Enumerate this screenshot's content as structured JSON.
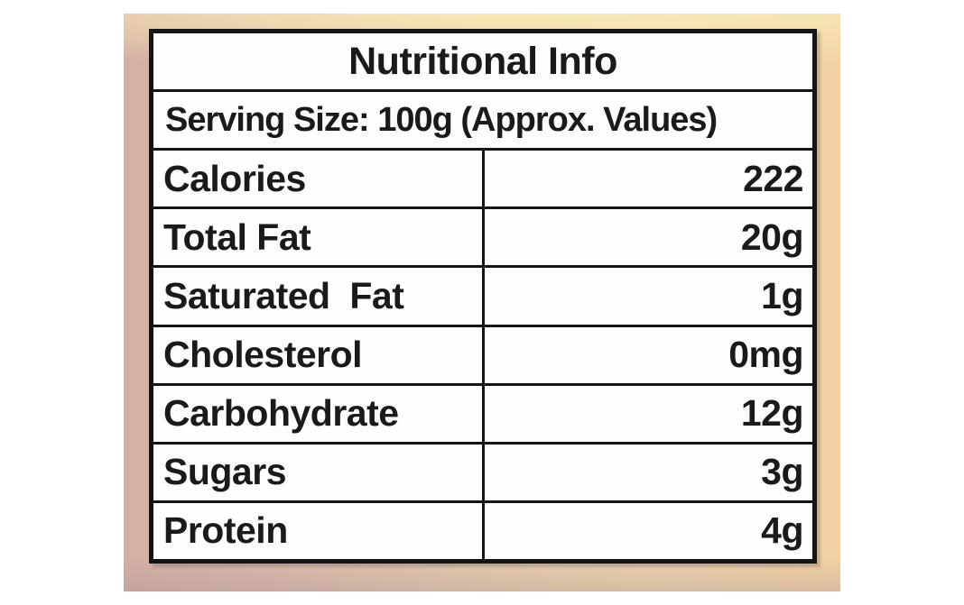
{
  "table": {
    "title": "Nutritional Info",
    "serving_size": "Serving Size: 100g (Approx. Values)",
    "rows": [
      {
        "label": "Calories",
        "value": "222"
      },
      {
        "label": "Total Fat",
        "value": "20g"
      },
      {
        "label": "Saturated  Fat",
        "value": "1g"
      },
      {
        "label": "Cholesterol",
        "value": "0mg"
      },
      {
        "label": "Carbohydrate",
        "value": "12g"
      },
      {
        "label": "Sugars",
        "value": "3g"
      },
      {
        "label": "Protein",
        "value": "4g"
      }
    ]
  },
  "colors": {
    "table_border": "#141414",
    "cell_background": "#fdfdfd",
    "text": "#1a1a1a",
    "photo_left": "#d5afa5",
    "photo_right": "#f3d1a4",
    "photo_top_highlight": "#f8ecb4"
  }
}
